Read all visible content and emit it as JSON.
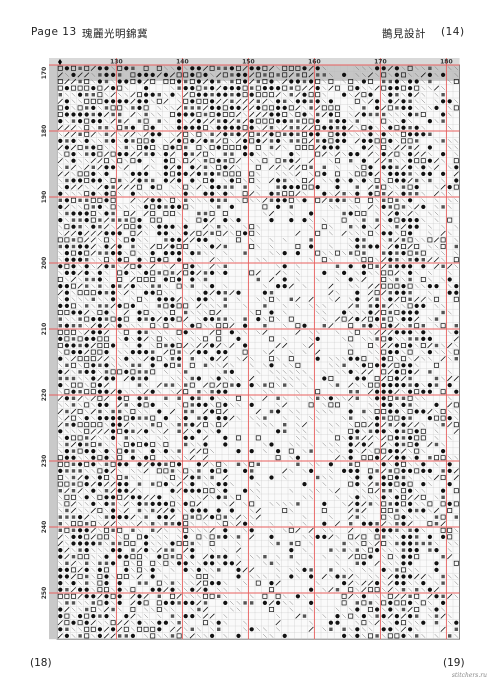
{
  "header": {
    "page_label": "Page 13",
    "title": "瑰麗光明錦冀",
    "designer": "鵲見設計",
    "page_number": "(14)"
  },
  "footer": {
    "left_number": "(18)",
    "right_number": "(19)",
    "watermark": "stitchers.ru"
  },
  "chart_data": {
    "type": "table",
    "title": "",
    "x_ticks": [
      "130",
      "140",
      "150",
      "160",
      "170",
      "180"
    ],
    "y_ticks": [
      "170",
      "180",
      "190",
      "200",
      "210",
      "220",
      "230",
      "240",
      "250"
    ],
    "grid": true,
    "grid_color": "#e8605f",
    "symbol_color": "#111111",
    "header_band_color": "#9a9a9a"
  }
}
